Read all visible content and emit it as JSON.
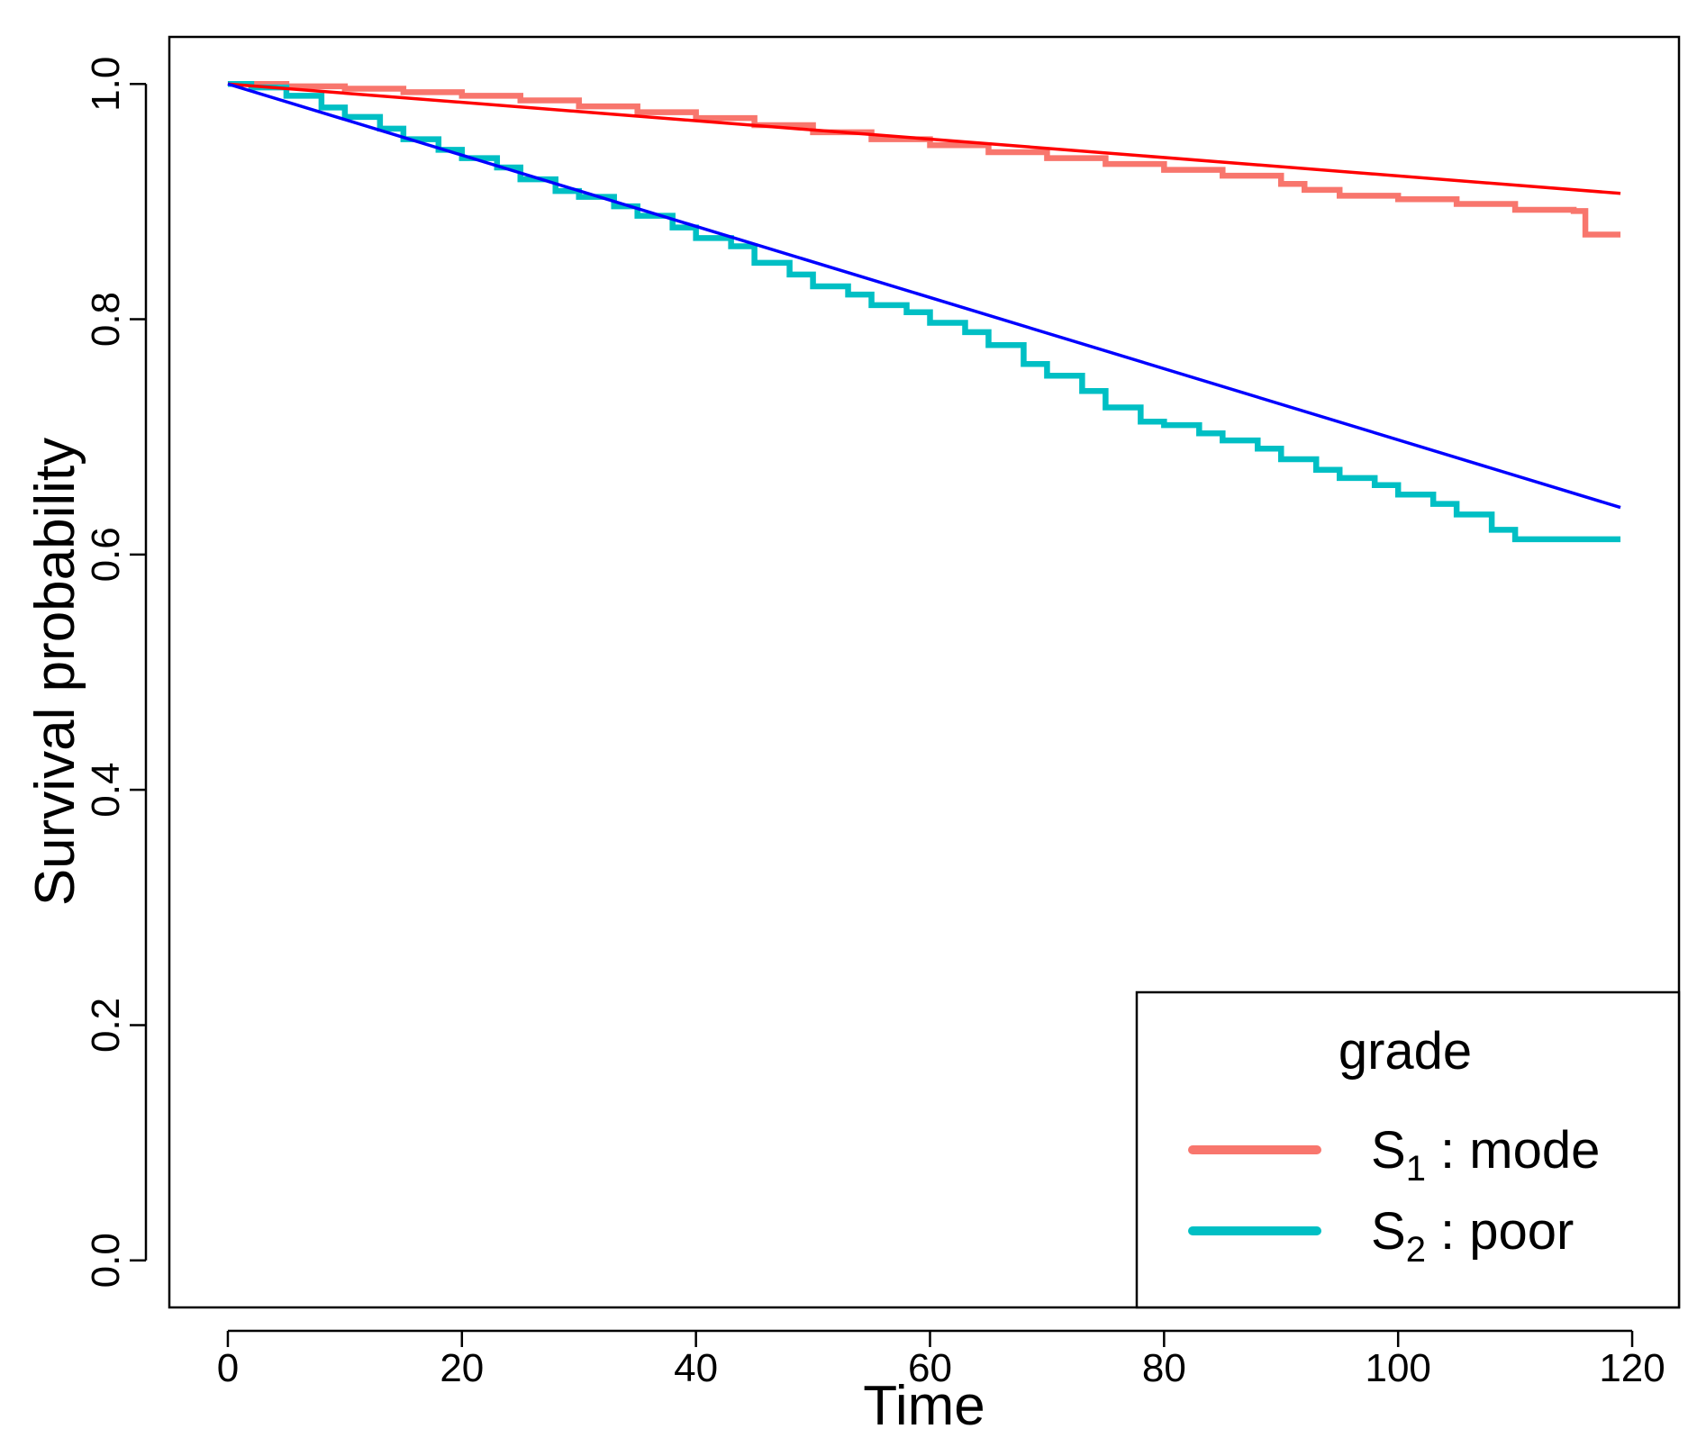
{
  "chart_data": {
    "type": "line",
    "xlabel": "Time",
    "ylabel": "Survival probability",
    "xlim": [
      -5,
      124
    ],
    "ylim": [
      -0.04,
      1.04
    ],
    "xticks": [
      "0",
      "20",
      "40",
      "60",
      "80",
      "100",
      "120"
    ],
    "yticks": [
      "0.0",
      "0.2",
      "0.4",
      "0.6",
      "0.8",
      "1.0"
    ],
    "grid": false,
    "legend": {
      "title": "grade",
      "position": "bottom-right",
      "entries": [
        {
          "prefix": "S",
          "subscript": "1",
          "suffix": " : mode",
          "color": "#F8766D"
        },
        {
          "prefix": "S",
          "subscript": "2",
          "suffix": " : poor",
          "color": "#00BFC4"
        }
      ]
    },
    "series": [
      {
        "name": "S1 : mode",
        "color": "#F8766D",
        "style": "step",
        "x": [
          0,
          5,
          10,
          15,
          20,
          25,
          30,
          35,
          40,
          45,
          50,
          55,
          60,
          65,
          70,
          75,
          80,
          85,
          90,
          92,
          95,
          100,
          105,
          110,
          115,
          116,
          119
        ],
        "y": [
          1.0,
          0.998,
          0.996,
          0.993,
          0.99,
          0.986,
          0.981,
          0.976,
          0.971,
          0.965,
          0.959,
          0.953,
          0.948,
          0.942,
          0.937,
          0.932,
          0.927,
          0.922,
          0.915,
          0.91,
          0.905,
          0.902,
          0.898,
          0.893,
          0.892,
          0.872,
          0.872
        ]
      },
      {
        "name": "S2 : poor",
        "color": "#00BFC4",
        "style": "step",
        "x": [
          0,
          2,
          5,
          8,
          10,
          13,
          15,
          18,
          20,
          23,
          25,
          28,
          30,
          33,
          35,
          38,
          40,
          43,
          45,
          48,
          50,
          53,
          55,
          58,
          60,
          63,
          65,
          68,
          70,
          73,
          75,
          78,
          80,
          83,
          85,
          88,
          90,
          93,
          95,
          98,
          100,
          103,
          105,
          108,
          110,
          119
        ],
        "y": [
          1.0,
          0.997,
          0.99,
          0.98,
          0.972,
          0.962,
          0.953,
          0.944,
          0.937,
          0.929,
          0.919,
          0.909,
          0.904,
          0.896,
          0.888,
          0.878,
          0.869,
          0.862,
          0.848,
          0.838,
          0.828,
          0.821,
          0.812,
          0.806,
          0.797,
          0.789,
          0.778,
          0.762,
          0.752,
          0.739,
          0.725,
          0.713,
          0.71,
          0.703,
          0.697,
          0.69,
          0.681,
          0.672,
          0.665,
          0.659,
          0.651,
          0.643,
          0.634,
          0.621,
          0.613,
          0.613
        ]
      },
      {
        "name": "",
        "color": "#FF0000",
        "style": "line",
        "x": [
          0,
          119
        ],
        "y": [
          1.0,
          0.907
        ]
      },
      {
        "name": "",
        "color": "#0000FF",
        "style": "line",
        "x": [
          0,
          119
        ],
        "y": [
          1.0,
          0.64
        ]
      }
    ]
  }
}
